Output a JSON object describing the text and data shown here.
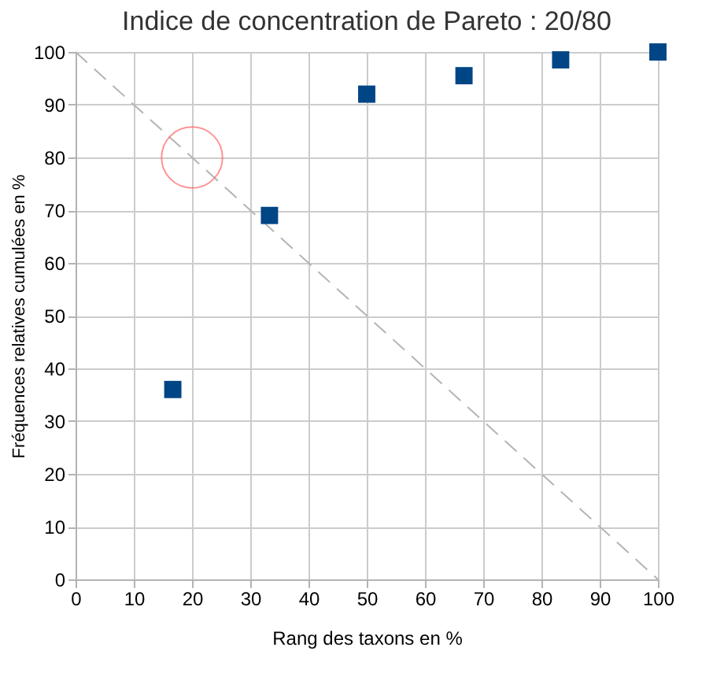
{
  "chart_data": {
    "type": "scatter",
    "title": "Indice de concentration de Pareto : 20/80",
    "xlabel": "Rang des taxons en %",
    "ylabel": "Fréquences relatives cumulées en %",
    "series": [
      {
        "type": "line",
        "color": "#b4b4b4",
        "line_style": "dashed",
        "marker": "none",
        "x": [
          0,
          100
        ],
        "values": [
          100,
          0
        ]
      },
      {
        "color": "#004586",
        "marker": "square",
        "x": [
          16.7,
          33.3,
          50,
          66.7,
          83.3,
          100
        ],
        "values": [
          36,
          69,
          92,
          95.5,
          98.5,
          100
        ]
      },
      {
        "color": "#ff6666",
        "marker": "circle",
        "x": [
          20
        ],
        "values": [
          80
        ]
      }
    ],
    "xlim": [
      0,
      100
    ],
    "xticks": [
      0,
      10,
      20,
      30,
      40,
      50,
      60,
      70,
      80,
      90,
      100
    ],
    "ylim": [
      0,
      100
    ],
    "yticks": [
      0,
      10,
      20,
      30,
      40,
      50,
      60,
      70,
      80,
      90,
      100
    ],
    "grid": true
  }
}
